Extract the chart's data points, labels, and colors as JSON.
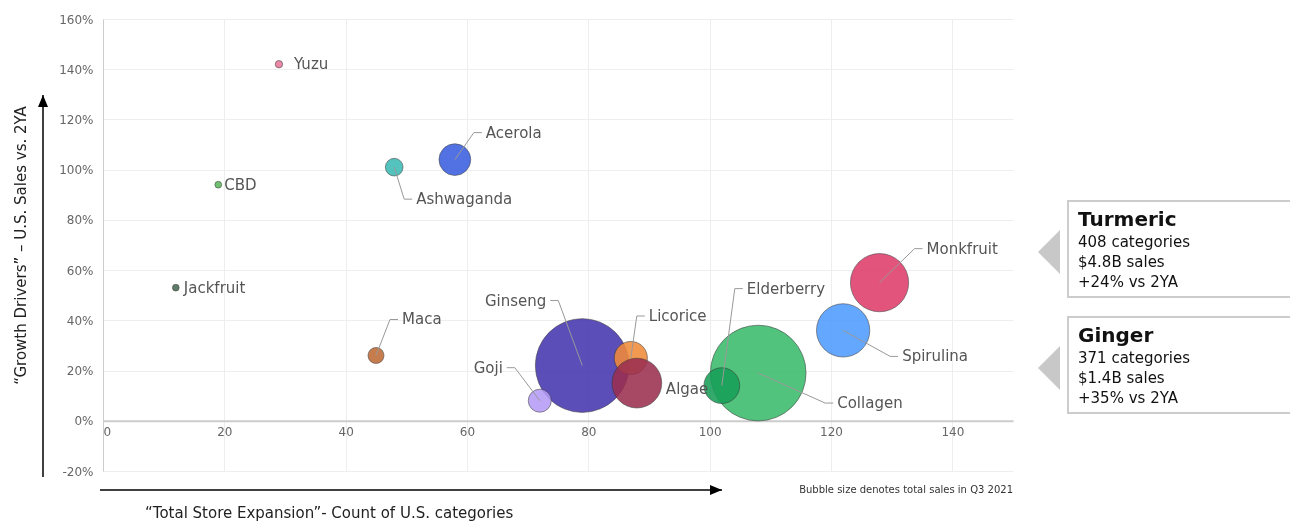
{
  "chart_data": {
    "type": "bubble",
    "xlabel": "“Total Store Expansion”- Count of U.S. categories",
    "ylabel": "“Growth Drivers” – U.S. Sales vs. 2YA",
    "xlim": [
      0,
      150
    ],
    "xticks": [
      0,
      20,
      40,
      60,
      80,
      100,
      120,
      140
    ],
    "ylim": [
      -20,
      160
    ],
    "yticks": [
      {
        "value": -20,
        "label": "-20%"
      },
      {
        "value": 0,
        "label": "0%"
      },
      {
        "value": 20,
        "label": "20%"
      },
      {
        "value": 40,
        "label": "40%"
      },
      {
        "value": 60,
        "label": "60%"
      },
      {
        "value": 80,
        "label": "80%"
      },
      {
        "value": 100,
        "label": "100%"
      },
      {
        "value": 120,
        "label": "120%"
      },
      {
        "value": 140,
        "label": "140%"
      },
      {
        "value": 160,
        "label": "160%"
      }
    ],
    "grid": true,
    "marker": "circle",
    "series": [
      {
        "name": "Yuzu",
        "color": "#e8799a",
        "x": [
          29
        ],
        "values": [
          142
        ],
        "sizes": [
          0.006
        ]
      },
      {
        "name": "CBD",
        "color": "#5cb85c",
        "x": [
          19
        ],
        "values": [
          94
        ],
        "sizes": [
          0.005
        ]
      },
      {
        "name": "Jackfruit",
        "color": "#4a6b55",
        "x": [
          12
        ],
        "values": [
          53
        ],
        "sizes": [
          0.005
        ]
      },
      {
        "name": "Ashwaganda",
        "color": "#3dbab5",
        "x": [
          48
        ],
        "values": [
          101
        ],
        "sizes": [
          0.034
        ]
      },
      {
        "name": "Acerola",
        "color": "#3b5fe0",
        "x": [
          58
        ],
        "values": [
          104
        ],
        "sizes": [
          0.11
        ]
      },
      {
        "name": "Maca",
        "color": "#c06a35",
        "x": [
          45
        ],
        "values": [
          26
        ],
        "sizes": [
          0.028
        ]
      },
      {
        "name": "Ginseng",
        "color": "#4636b0",
        "x": [
          79
        ],
        "values": [
          22
        ],
        "sizes": [
          0.96
        ]
      },
      {
        "name": "Goji",
        "color": "#b49cf5",
        "x": [
          72
        ],
        "values": [
          8
        ],
        "sizes": [
          0.058
        ]
      },
      {
        "name": "Licorice",
        "color": "#f08a3a",
        "x": [
          87
        ],
        "values": [
          25
        ],
        "sizes": [
          0.12
        ]
      },
      {
        "name": "Algae",
        "color": "#9b2f50",
        "x": [
          88
        ],
        "values": [
          15
        ],
        "sizes": [
          0.27
        ]
      },
      {
        "name": "Collagen",
        "color": "#3bbb6c",
        "x": [
          108
        ],
        "values": [
          19
        ],
        "sizes": [
          1
        ]
      },
      {
        "name": "Elderberry",
        "color": "#179f58",
        "x": [
          102
        ],
        "values": [
          14
        ],
        "sizes": [
          0.14
        ]
      },
      {
        "name": "Spirulina",
        "color": "#4f9bff",
        "x": [
          122
        ],
        "values": [
          36
        ],
        "sizes": [
          0.31
        ]
      },
      {
        "name": "Monkfruit",
        "color": "#e03d6c",
        "x": [
          128
        ],
        "values": [
          55
        ],
        "sizes": [
          0.37
        ]
      }
    ],
    "annotations": [
      "Bubble size denotes total sales in Q3 2021",
      "Turmeric",
      "408 categories",
      "$4.8B sales",
      "+24% vs 2YA",
      "Ginger",
      "371 categories",
      "$1.4B sales",
      "+35% vs 2YA"
    ]
  }
}
